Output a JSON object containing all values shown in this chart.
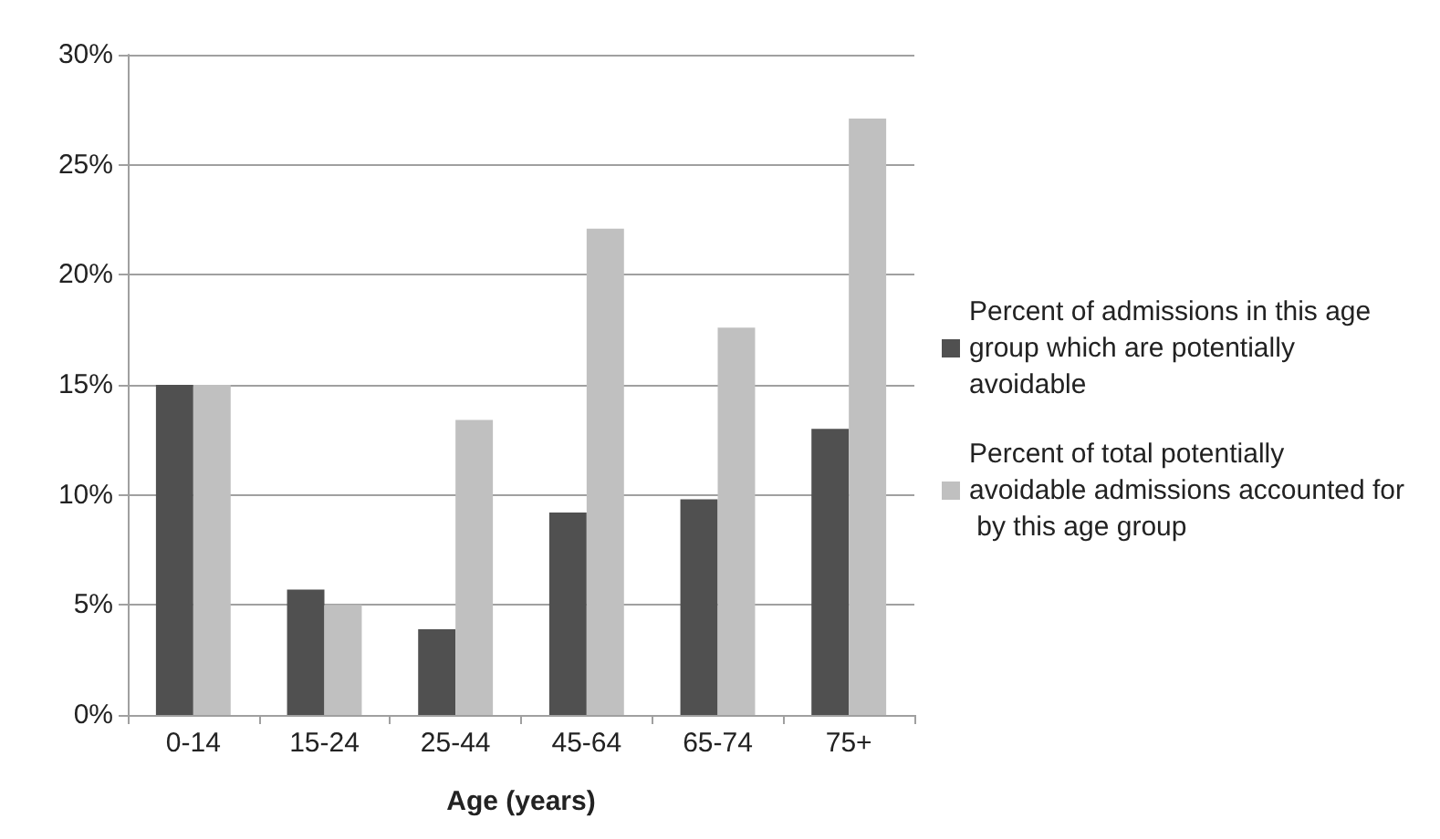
{
  "chart_data": {
    "type": "bar",
    "xlabel": "Age (years)",
    "categories": [
      "0-14",
      "15-24",
      "25-44",
      "45-64",
      "65-74",
      "75+"
    ],
    "series": [
      {
        "name": "Percent of admissions in this age group which are potentially avoidable",
        "color": "#505050",
        "values": [
          15.0,
          5.7,
          3.9,
          9.2,
          9.8,
          13.0
        ]
      },
      {
        "name": "Percent of total potentially avoidable admissions accounted for by this age group",
        "color": "#c0c0c0",
        "values": [
          15.0,
          5.0,
          13.4,
          22.1,
          17.6,
          27.1
        ]
      }
    ],
    "ylim": [
      0,
      30
    ],
    "yticks": [
      {
        "value": 0,
        "label": "0%"
      },
      {
        "value": 5,
        "label": "5%"
      },
      {
        "value": 10,
        "label": "10%"
      },
      {
        "value": 15,
        "label": "15%"
      },
      {
        "value": 20,
        "label": "20%"
      },
      {
        "value": 25,
        "label": "25%"
      },
      {
        "value": 30,
        "label": "30%"
      }
    ],
    "grid": "y",
    "legend": "right"
  }
}
